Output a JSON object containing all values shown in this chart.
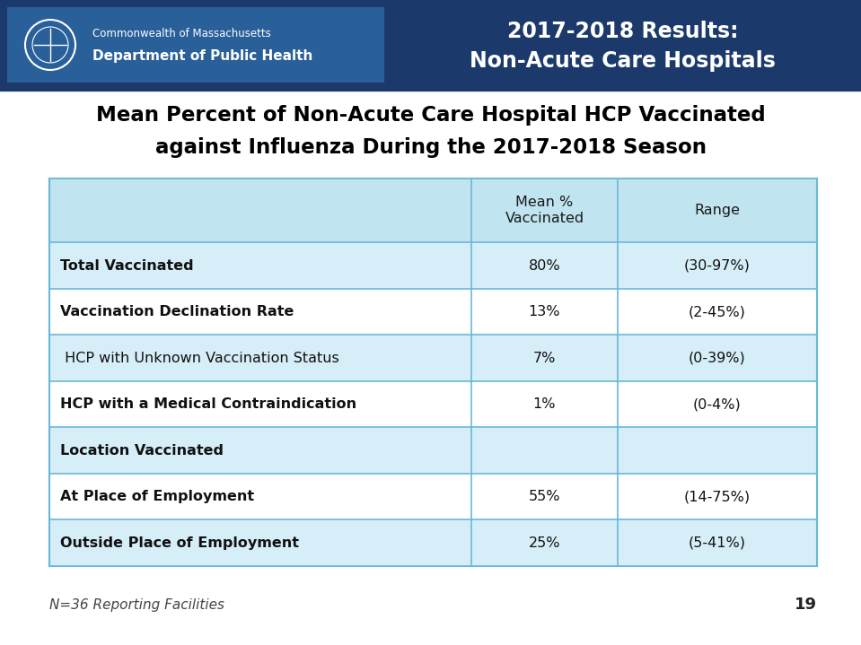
{
  "header_bg_color": "#1b3a6b",
  "header_logo_bg": "#2a6099",
  "header_text_line1": "2017-2018 Results:",
  "header_text_line2": "Non-Acute Care Hospitals",
  "header_text_color": "#ffffff",
  "logo_text1": "Commonwealth of Massachusetts",
  "logo_text2": "Department of Public Health",
  "page_bg_color": "#ffffff",
  "chart_title_line1": "Mean Percent of Non-Acute Care Hospital HCP Vaccinated",
  "chart_title_line2": "against Influenza During the 2017-2018 Season",
  "title_color": "#000000",
  "table_bg_color": "#d6eef8",
  "table_header_bg": "#c0e4f0",
  "table_row_white": "#ffffff",
  "table_border_color": "#6ab8d8",
  "col_headers": [
    "Mean %\nVaccinated",
    "Range"
  ],
  "rows": [
    {
      "label": "Total Vaccinated",
      "mean": "80%",
      "range": "(30-97%)",
      "bold": true
    },
    {
      "label": "Vaccination Declination Rate",
      "mean": "13%",
      "range": "(2-45%)",
      "bold": true
    },
    {
      "label": " HCP with Unknown Vaccination Status",
      "mean": "7%",
      "range": "(0-39%)",
      "bold": false
    },
    {
      "label": "HCP with a Medical Contraindication",
      "mean": "1%",
      "range": "(0-4%)",
      "bold": true
    },
    {
      "label": "Location Vaccinated",
      "mean": "",
      "range": "",
      "bold": true
    },
    {
      "label": "At Place of Employment",
      "mean": "55%",
      "range": "(14-75%)",
      "bold": true
    },
    {
      "label": "Outside Place of Employment",
      "mean": "25%",
      "range": "(5-41%)",
      "bold": true
    }
  ],
  "footer_text": "N=36 Reporting Facilities",
  "page_number": "19",
  "footer_font_size": 11,
  "page_num_font_size": 13
}
